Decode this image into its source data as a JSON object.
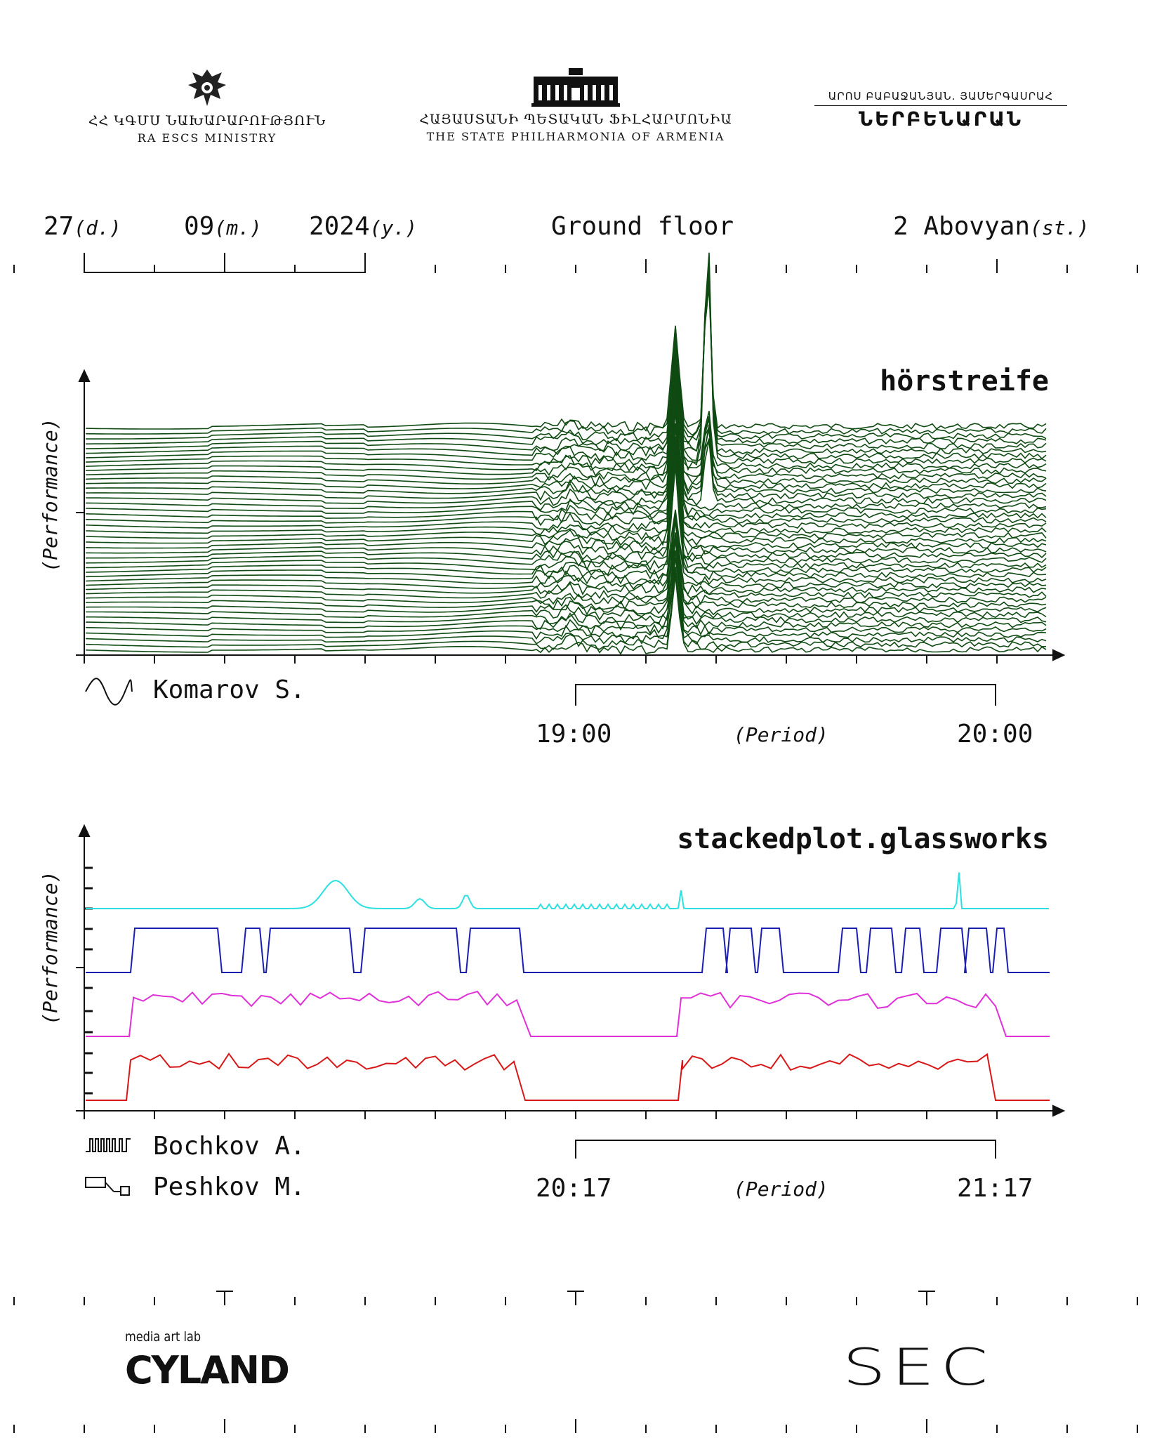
{
  "header": {
    "left_logo": {
      "title": "ՀՀ ԿԳՄՍ ՆԱԽԱՐԱՐՈՒԹՅՈՒՆ",
      "subtitle": "RA ESCS MINISTRY",
      "icon": "armenian-coat-of-arms-icon"
    },
    "center_logo": {
      "title": "ՀԱՅԱՍՏԱՆԻ ՊԵՏԱԿԱՆ ՖԻԼՀԱՐՄՈՆԻԱ",
      "subtitle": "THE STATE PHILHARMONIA OF ARMENIA",
      "icon": "philharmonia-building-icon"
    },
    "right_logo": {
      "title": "ԱՐՈՍ ԲԱԲԱՋԱՆՅԱՆ. ՅԱՄԵՐԳԱՍՐԱՀ",
      "wordmark": "ՆԵՐԲԵՆԱՐԱՆ"
    }
  },
  "info": {
    "day": "27",
    "day_unit": "(d.)",
    "month": "09",
    "month_unit": "(m.)",
    "year": "2024",
    "year_unit": "(y.)",
    "location": "Ground floor",
    "address": "2 Abovyan",
    "address_unit": "(st.)"
  },
  "section1": {
    "title": "hörstreife",
    "ylabel": "(Performance)",
    "performer": "Komarov S.",
    "performer_icon": "sine-wave-icon",
    "period_start": "19:00",
    "period_label": "(Period)",
    "period_end": "20:00",
    "line_color": "#0f4a12"
  },
  "section2": {
    "title": "stackedplot.glassworks",
    "ylabel": "(Performance)",
    "performers": [
      {
        "name": "Bochkov A.",
        "icon": "square-pulse-icon"
      },
      {
        "name": "Peshkov M.",
        "icon": "box-connector-icon"
      }
    ],
    "period_start": "20:17",
    "period_label": "(Period)",
    "period_end": "21:17",
    "series_colors": [
      "#2de0e0",
      "#1a1fb0",
      "#e030d8",
      "#d81818"
    ]
  },
  "footer": {
    "lab_label": "media art lab",
    "lab_logo": "CYLAND",
    "right_logo": "SEC"
  }
}
